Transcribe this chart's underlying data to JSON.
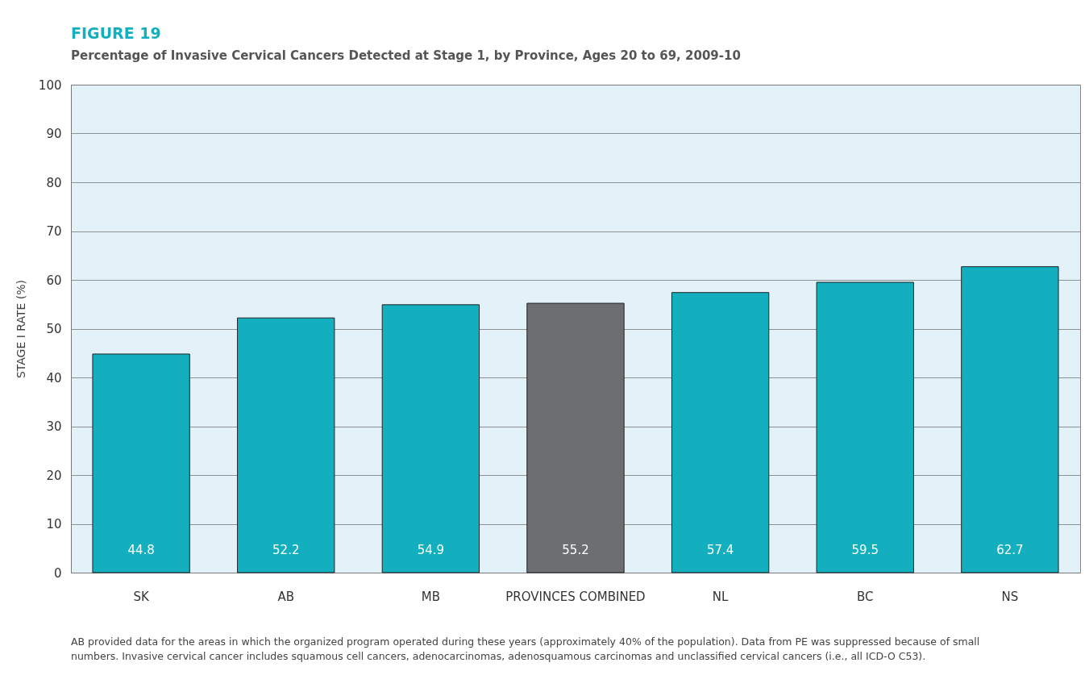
{
  "chart_data": {
    "type": "bar",
    "title": "FIGURE 19",
    "subtitle": "Percentage of Invasive Cervical Cancers Detected at Stage 1, by Province, Ages 20 to 69, 2009-10",
    "ylabel": "STAGE I RATE (%)",
    "categories": [
      "SK",
      "AB",
      "MB",
      "PROVINCES COMBINED",
      "NL",
      "BC",
      "NS"
    ],
    "values": [
      44.8,
      52.2,
      54.9,
      55.2,
      57.4,
      59.5,
      62.7
    ],
    "colors": [
      "#14afbf",
      "#14afbf",
      "#14afbf",
      "#6d6e71",
      "#14afbf",
      "#14afbf",
      "#14afbf"
    ],
    "ylim": [
      0,
      100
    ],
    "yticks": [
      0,
      10,
      20,
      30,
      40,
      50,
      60,
      70,
      80,
      90,
      100
    ],
    "grid": "y",
    "data_labels": true,
    "annotations": [
      "AB provided data for the areas in which the organized program operated during these years (approximately 40% of the population). Data from PE was suppressed because of small numbers. Invasive cervical cancer includes squamous cell cancers, adenocarcinomas, adenosquamous carcinomas and unclassified cervical cancers (i.e., all ICD-O C53)."
    ]
  }
}
